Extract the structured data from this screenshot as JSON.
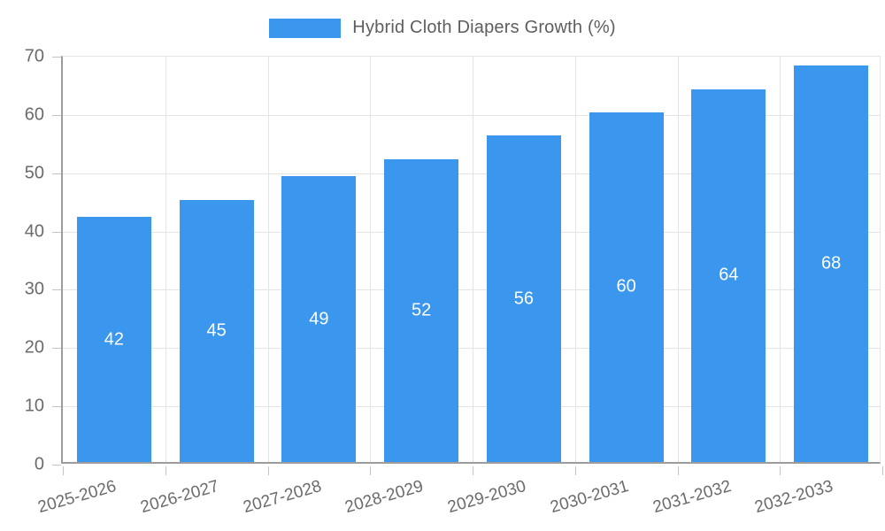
{
  "legend": {
    "label": "Hybrid Cloth Diapers Growth (%)",
    "swatch_color": "#3b97ed"
  },
  "chart_data": {
    "type": "bar",
    "title": "Hybrid Cloth Diapers Growth (%)",
    "categories": [
      "2025-2026",
      "2026-2027",
      "2027-2028",
      "2028-2029",
      "2029-2030",
      "2030-2031",
      "2031-2032",
      "2032-2033"
    ],
    "values": [
      42,
      45,
      49,
      52,
      56,
      60,
      64,
      68
    ],
    "value_labels": [
      "42",
      "45",
      "49",
      "52",
      "56",
      "60",
      "64",
      "68"
    ],
    "xlabel": "",
    "ylabel": "",
    "ylim": [
      0,
      70
    ],
    "yticks": [
      0,
      10,
      20,
      30,
      40,
      50,
      60,
      70
    ],
    "grid": true,
    "legend_position": "top-center",
    "x_label_rotation_deg": -16,
    "bar_color": "#3b97ed",
    "value_label_color": "#ffffff",
    "axis_label_color": "#6b6b6b",
    "gridline_color": "#e4e4e4",
    "axis_line_color": "#9c9c9c"
  }
}
